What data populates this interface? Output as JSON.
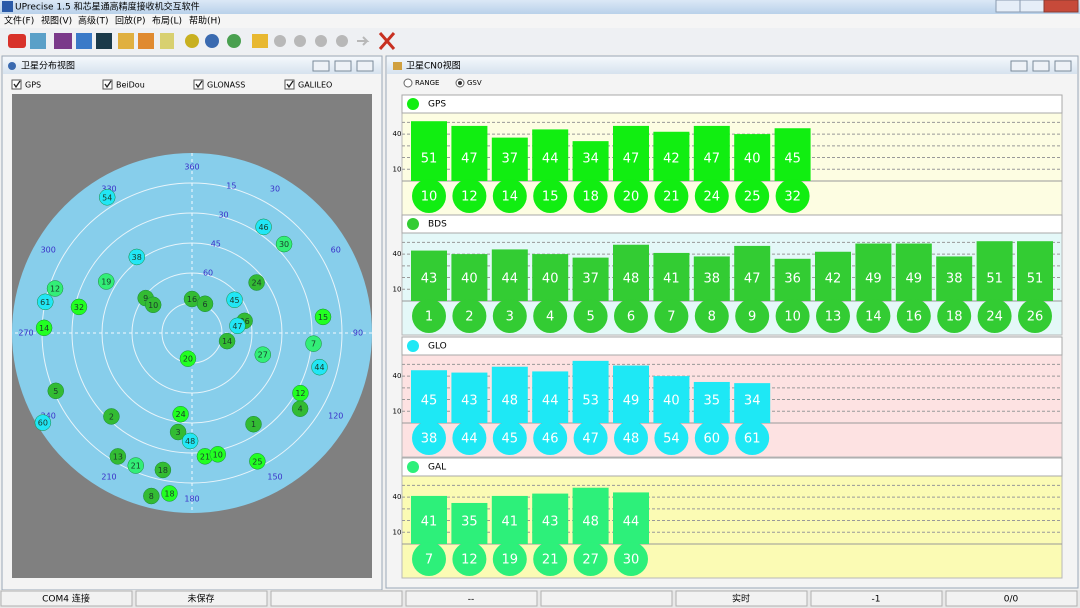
{
  "window": {
    "title": "UPrecise 1.5  和芯星通高精度接收机交互软件"
  },
  "menu": [
    "文件(F)",
    "视图(V)",
    "高级(T)",
    "回放(P)",
    "布局(L)",
    "帮助(H)"
  ],
  "sky_view": {
    "title": "卫星分布视图",
    "filters": [
      {
        "label": "GPS",
        "checked": true
      },
      {
        "label": "BeiDou",
        "checked": true
      },
      {
        "label": "GLONASS",
        "checked": true
      },
      {
        "label": "GALILEO",
        "checked": true
      }
    ],
    "azimuth_ticks": [
      360,
      30,
      60,
      90,
      120,
      150,
      180,
      210,
      240,
      270,
      300,
      330
    ],
    "azimuth_grid": [
      0,
      90
    ],
    "elevation_lim": [
      0,
      90
    ],
    "elevation_ticks": [
      15,
      30,
      45,
      60
    ],
    "elevation_grid": [
      15,
      30,
      45,
      60,
      75
    ],
    "satellite_groups": [
      {
        "color": "#22ff22",
        "satellites": [
          {
            "prn": 32,
            "az": 283,
            "el": 32
          },
          {
            "prn": 15,
            "az": 83,
            "el": 24
          },
          {
            "prn": 20,
            "az": 189,
            "el": 77
          },
          {
            "prn": 12,
            "az": 119,
            "el": 28
          },
          {
            "prn": 24,
            "az": 188,
            "el": 49
          },
          {
            "prn": 21,
            "az": 174,
            "el": 28
          },
          {
            "prn": 10,
            "az": 168,
            "el": 28
          },
          {
            "prn": 25,
            "az": 153,
            "el": 18
          },
          {
            "prn": 18,
            "az": 188,
            "el": 9
          },
          {
            "prn": 14,
            "az": 272,
            "el": 16
          }
        ]
      },
      {
        "color": "#33bb33",
        "satellites": [
          {
            "prn": 9,
            "az": 307,
            "el": 61
          },
          {
            "prn": 10,
            "az": 306,
            "el": 66
          },
          {
            "prn": 16,
            "az": 0,
            "el": 73
          },
          {
            "prn": 6,
            "az": 24,
            "el": 74
          },
          {
            "prn": 24,
            "az": 52,
            "el": 49
          },
          {
            "prn": 14,
            "az": 103,
            "el": 72
          },
          {
            "prn": 26,
            "az": 77,
            "el": 63
          },
          {
            "prn": 5,
            "az": 247,
            "el": 16
          },
          {
            "prn": 4,
            "az": 125,
            "el": 24
          },
          {
            "prn": 2,
            "az": 224,
            "el": 32
          },
          {
            "prn": 3,
            "az": 188,
            "el": 40
          },
          {
            "prn": 1,
            "az": 146,
            "el": 35
          },
          {
            "prn": 13,
            "az": 211,
            "el": 18
          },
          {
            "prn": 18,
            "az": 192,
            "el": 20
          },
          {
            "prn": 8,
            "az": 194,
            "el": 6
          }
        ]
      },
      {
        "color": "#22e6f5",
        "satellites": [
          {
            "prn": 54,
            "az": 328,
            "el": 10
          },
          {
            "prn": 46,
            "az": 34,
            "el": 26
          },
          {
            "prn": 38,
            "az": 324,
            "el": 43
          },
          {
            "prn": 61,
            "az": 282,
            "el": 15
          },
          {
            "prn": 45,
            "az": 52,
            "el": 63
          },
          {
            "prn": 44,
            "az": 105,
            "el": 24
          },
          {
            "prn": 48,
            "az": 181,
            "el": 36
          },
          {
            "prn": 60,
            "az": 239,
            "el": 3
          },
          {
            "prn": 47,
            "az": 81,
            "el": 67
          }
        ]
      },
      {
        "color": "#33ee77",
        "satellites": [
          {
            "prn": 30,
            "az": 46,
            "el": 26
          },
          {
            "prn": 12,
            "az": 288,
            "el": 18
          },
          {
            "prn": 19,
            "az": 301,
            "el": 40
          },
          {
            "prn": 27,
            "az": 107,
            "el": 53
          },
          {
            "prn": 7,
            "az": 95,
            "el": 29
          },
          {
            "prn": 21,
            "az": 203,
            "el": 18
          }
        ]
      }
    ]
  },
  "cn0_view": {
    "title": "卫星CN0视图",
    "modes": [
      {
        "label": "RANGE",
        "selected": false
      },
      {
        "label": "GSV",
        "selected": true
      }
    ],
    "ylim": [
      0,
      58
    ],
    "yticks": [
      10,
      40
    ],
    "grid": [
      10,
      20,
      30,
      40,
      50
    ],
    "groups": [
      {
        "name": "GPS",
        "color": "#11ee11",
        "background": "#fdfde2",
        "prns": [
          10,
          12,
          14,
          15,
          18,
          20,
          21,
          24,
          25,
          32
        ],
        "values": [
          51,
          47,
          37,
          44,
          34,
          47,
          42,
          47,
          40,
          45
        ]
      },
      {
        "name": "BDS",
        "color": "#33cc33",
        "background": "#e4f8f8",
        "prns": [
          1,
          2,
          3,
          4,
          5,
          6,
          7,
          8,
          9,
          10,
          13,
          14,
          16,
          18,
          24,
          26
        ],
        "values": [
          43,
          40,
          44,
          40,
          37,
          48,
          41,
          38,
          47,
          36,
          42,
          49,
          49,
          38,
          51,
          51
        ]
      },
      {
        "name": "GLO",
        "color": "#1ee8f5",
        "background": "#fde2e2",
        "prns": [
          38,
          44,
          45,
          46,
          47,
          48,
          54,
          60,
          61
        ],
        "values": [
          45,
          43,
          48,
          44,
          53,
          49,
          40,
          35,
          34
        ]
      },
      {
        "name": "GAL",
        "color": "#2df07a",
        "background": "#fbfbb4",
        "prns": [
          7,
          12,
          19,
          21,
          27,
          30
        ],
        "values": [
          41,
          35,
          41,
          43,
          48,
          44
        ]
      }
    ]
  },
  "status": [
    "COM4 连接",
    "未保存",
    "--",
    "实时",
    "-1",
    "0/0"
  ]
}
